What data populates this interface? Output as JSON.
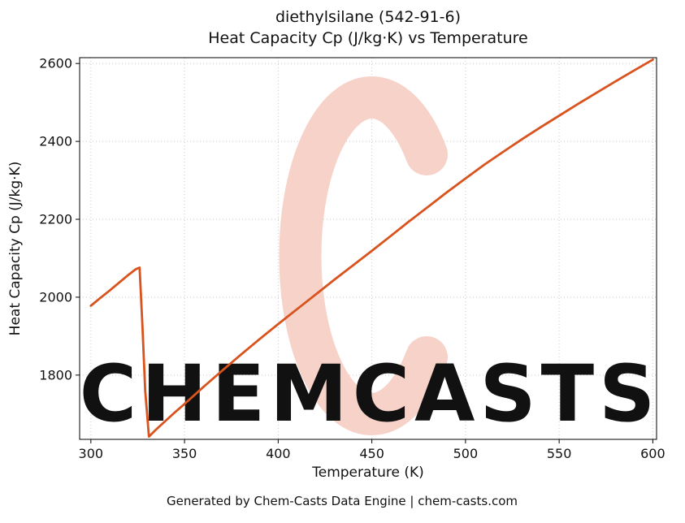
{
  "title_line1": "diethylsilane (542-91-6)",
  "title_line2": "Heat Capacity Cp (J/kg·K) vs Temperature",
  "footer": "Generated by Chem-Casts Data Engine | chem-casts.com",
  "watermark_text": "CHEMCASTS",
  "colors": {
    "line": "#d9531e",
    "watermark": "#f6d2c9",
    "grid": "#c9c9c9",
    "spine": "#000000",
    "footer_text": "#555555",
    "title_text": "#111111"
  },
  "chart_data": {
    "type": "line",
    "title": "diethylsilane (542-91-6) Heat Capacity Cp (J/kg·K) vs Temperature",
    "xlabel": "Temperature (K)",
    "ylabel": "Heat Capacity Cp (J/kg·K)",
    "xlim": [
      294,
      602
    ],
    "ylim": [
      1635,
      2615
    ],
    "xticks": [
      300,
      350,
      400,
      450,
      500,
      550,
      600
    ],
    "yticks": [
      1800,
      2000,
      2200,
      2400,
      2600
    ],
    "grid": true,
    "legend": "none",
    "series": [
      {
        "name": "Heat Capacity Cp",
        "x": [
          300,
          305,
          310,
          315,
          320,
          324,
          326,
          327.5,
          329,
          331,
          335,
          340,
          345,
          350,
          360,
          370,
          380,
          390,
          400,
          410,
          420,
          430,
          440,
          450,
          460,
          470,
          480,
          490,
          500,
          510,
          520,
          530,
          540,
          550,
          560,
          570,
          580,
          590,
          600
        ],
        "y": [
          1978,
          1998,
          2017,
          2037,
          2057,
          2072,
          2076,
          1930,
          1760,
          1642,
          1661,
          1683,
          1705,
          1726,
          1769,
          1811,
          1852,
          1892,
          1931,
          1969,
          2007,
          2045,
          2082,
          2119,
          2157,
          2195,
          2232,
          2269,
          2305,
          2340,
          2373,
          2405,
          2436,
          2466,
          2496,
          2525,
          2554,
          2582,
          2610
        ]
      }
    ],
    "annotations": {
      "peak_before_drop": {
        "x": 326,
        "y": 2076
      },
      "minimum_after_drop": {
        "x": 331,
        "y": 1642
      }
    }
  }
}
